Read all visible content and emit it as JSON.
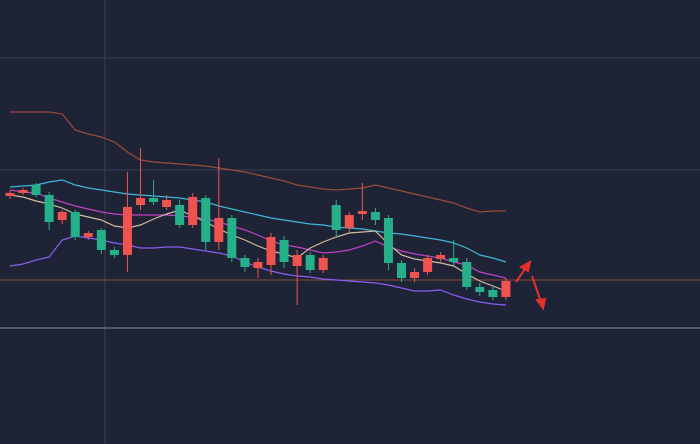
{
  "chart_data": {
    "type": "candlestick",
    "open": [
      248,
      251,
      259,
      249,
      224,
      232,
      207,
      214,
      194,
      189,
      239,
      246,
      237,
      239,
      219,
      246,
      202,
      226,
      186,
      176,
      179,
      204,
      178,
      189,
      174,
      239,
      216,
      230,
      232,
      226,
      181,
      166,
      172,
      185,
      186,
      182,
      157,
      154,
      147
    ],
    "high": [
      254,
      256,
      261,
      252,
      234,
      234,
      213,
      216,
      197,
      272,
      296,
      264,
      249,
      244,
      251,
      249,
      286,
      229,
      189,
      186,
      211,
      208,
      194,
      192,
      189,
      244,
      232,
      261,
      236,
      229,
      184,
      176,
      189,
      192,
      204,
      186,
      161,
      159,
      166
    ],
    "low": [
      245,
      249,
      247,
      214,
      220,
      204,
      204,
      190,
      186,
      172,
      234,
      239,
      234,
      216,
      216,
      194,
      194,
      182,
      172,
      166,
      169,
      176,
      139,
      171,
      171,
      206,
      212,
      224,
      219,
      174,
      162,
      162,
      169,
      182,
      178,
      154,
      148,
      144,
      144
    ],
    "close": [
      251,
      254,
      249,
      222,
      232,
      207,
      211,
      194,
      189,
      237,
      246,
      242,
      244,
      219,
      247,
      202,
      226,
      186,
      177,
      182,
      207,
      182,
      189,
      174,
      186,
      214,
      229,
      233,
      224,
      181,
      166,
      172,
      186,
      189,
      182,
      157,
      152,
      147,
      163
    ],
    "up_color": "#ef5350",
    "down_color": "#26b08a",
    "lines": [
      {
        "color": "#9c4a3a",
        "values": [
          332,
          332,
          332,
          332,
          330,
          314,
          310,
          307,
          302,
          292,
          284,
          282,
          281,
          280,
          279,
          278,
          276,
          274,
          272,
          269,
          266,
          263,
          259,
          257,
          255,
          254,
          255,
          256,
          259,
          256,
          253,
          250,
          247,
          244,
          241,
          236,
          232,
          233,
          233
        ]
      },
      {
        "color": "#3fb6d8",
        "values": [
          257,
          258,
          259,
          262,
          264,
          259,
          256,
          254,
          252,
          250,
          249,
          248,
          247,
          246,
          244,
          242,
          238,
          235,
          232,
          229,
          226,
          224,
          222,
          220,
          219,
          217,
          216,
          215,
          213,
          211,
          210,
          208,
          206,
          204,
          201,
          196,
          189,
          186,
          182
        ]
      },
      {
        "color": "#c33fc6",
        "values": [
          254,
          252,
          251,
          246,
          242,
          238,
          235,
          232,
          230,
          229,
          229,
          229,
          229,
          228,
          227,
          225,
          222,
          218,
          214,
          209,
          203,
          199,
          197,
          194,
          191,
          192,
          194,
          198,
          203,
          197,
          193,
          190,
          188,
          186,
          182,
          179,
          172,
          169,
          166
        ]
      },
      {
        "color": "#d6b89c",
        "values": [
          249,
          247,
          243,
          240,
          236,
          230,
          227,
          224,
          218,
          216,
          219,
          225,
          230,
          234,
          228,
          222,
          215,
          209,
          204,
          198,
          193,
          190,
          186,
          196,
          202,
          207,
          211,
          212,
          213,
          200,
          189,
          185,
          183,
          181,
          178,
          170,
          163,
          158,
          153
        ]
      },
      {
        "color": "#8a5cf0",
        "values": [
          178,
          180,
          184,
          187,
          204,
          208,
          206,
          204,
          201,
          199,
          196,
          196,
          197,
          197,
          195,
          193,
          191,
          188,
          182,
          177,
          173,
          170,
          168,
          167,
          165,
          164,
          163,
          162,
          161,
          159,
          156,
          153,
          153,
          154,
          149,
          145,
          142,
          140,
          139
        ]
      }
    ],
    "price_line": 164,
    "price_line_color": "#8a4a3c",
    "ylim": [
      0,
      444
    ]
  }
}
